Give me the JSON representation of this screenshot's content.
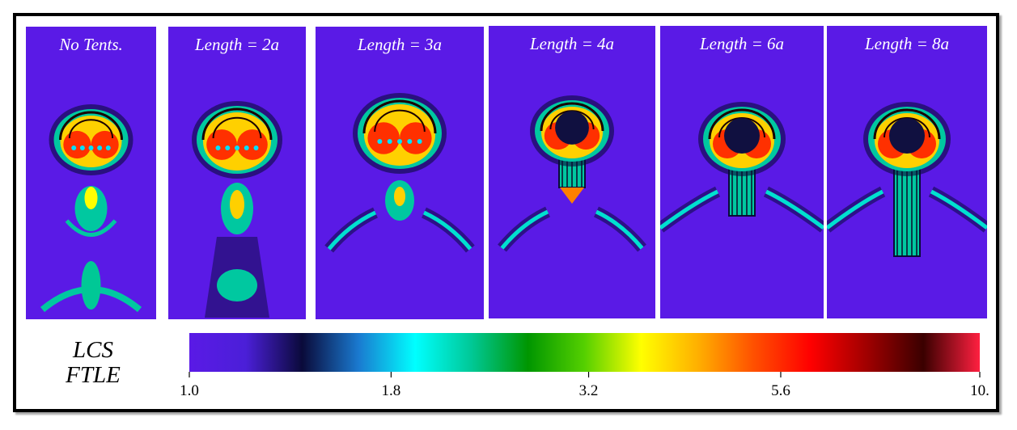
{
  "panels": [
    {
      "title": "No Tents.",
      "tent_length": 0
    },
    {
      "title": "Length = 2a",
      "tent_length": 2
    },
    {
      "title": "Length = 3a",
      "tent_length": 3
    },
    {
      "title": "Length = 4a",
      "tent_length": 4
    },
    {
      "title": "Length = 6a",
      "tent_length": 6
    },
    {
      "title": "Length = 8a",
      "tent_length": 8
    }
  ],
  "legend": {
    "line1": "LCS",
    "line2": "FTLE"
  },
  "colorbar": {
    "ticks": [
      {
        "label": "1.0",
        "value": 1.0
      },
      {
        "label": "1.8",
        "value": 1.8
      },
      {
        "label": "3.2",
        "value": 3.2
      },
      {
        "label": "5.6",
        "value": 5.6
      },
      {
        "label": "10.",
        "value": 10.0
      }
    ],
    "scale": "log",
    "colors": [
      "#5a1ae6",
      "#4b1fd8",
      "#0a0a3a",
      "#1a7ad0",
      "#00ffff",
      "#00c896",
      "#009600",
      "#55d000",
      "#ffff00",
      "#ffb000",
      "#ff5000",
      "#ff0000",
      "#a00000",
      "#3a0000",
      "#ff2040"
    ]
  },
  "colors": {
    "background_field": "#5a1ae6"
  }
}
